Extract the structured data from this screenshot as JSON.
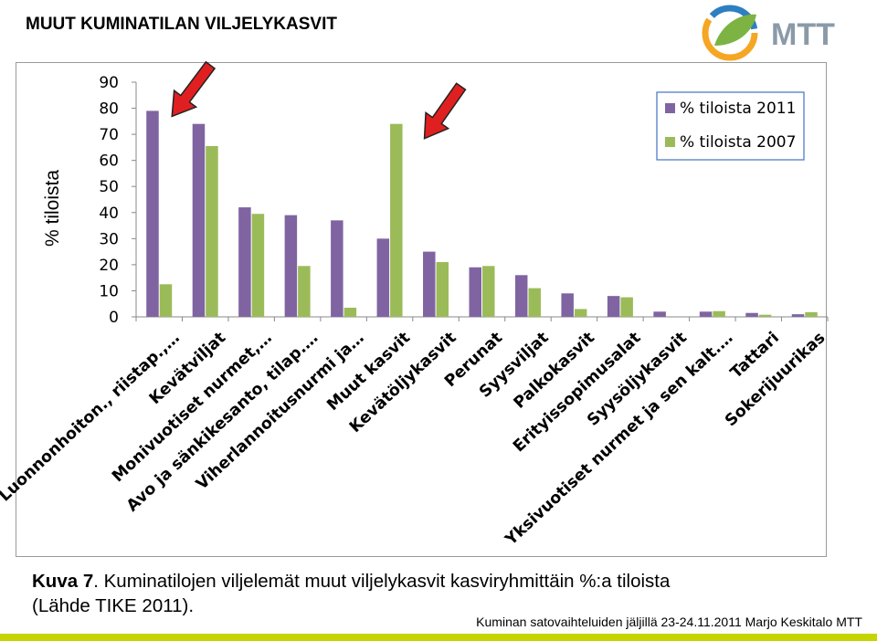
{
  "slide": {
    "title": "MUUT KUMINATILAN VILJELYKASVIT",
    "y_axis_title": "% tiloista",
    "caption_bold": "Kuva 7",
    "caption_rest": ". Kuminatilojen viljelemät muut viljelykasvit kasviryhmittäin %:a tiloista",
    "caption_line2": "(Lähde TIKE 2011).",
    "footer": "Kuminan satovaihteluiden jäljillä 23-24.11.2011 Marjo Keskitalo MTT",
    "logo_text": "MTT"
  },
  "colors": {
    "series_2011": "#8064a2",
    "series_2007": "#9bbb59",
    "arrow": "#e02020",
    "bottom_bar": "#c6d400",
    "logo_text": "#8a9aa8"
  },
  "chart_data": {
    "type": "bar",
    "categories": [
      "Luonnonhoiton., riistap.,…",
      "Kevätviljat",
      "Monivuotiset nurmet,…",
      "Avo ja sänkikesanto, tilap.…",
      "Viherlannoitusnurmi ja…",
      "Muut kasvit",
      "Kevätöljykasvit",
      "Perunat",
      "Syysviljat",
      "Palkokasvit",
      "Erityissopimusalat",
      "Syysöljykasvit",
      "Yksivuotiset nurmet ja sen kalt.…",
      "Tattari",
      "Sokerijuurikas"
    ],
    "series": [
      {
        "name": "% tiloista 2011",
        "values": [
          79,
          74,
          42,
          39,
          37,
          30,
          25,
          19,
          16,
          9,
          8,
          2,
          2,
          1.5,
          1
        ]
      },
      {
        "name": "% tiloista 2007",
        "values": [
          12.5,
          65.5,
          39.5,
          19.5,
          3.5,
          74,
          21,
          19.5,
          11,
          3,
          7.5,
          0,
          2.2,
          0.8,
          1.8
        ]
      }
    ],
    "y_ticks": [
      0,
      10,
      20,
      30,
      40,
      50,
      60,
      70,
      80,
      90
    ],
    "ylim": [
      0,
      90
    ],
    "legend_position": "top-right",
    "grid": false,
    "arrow_annotations": [
      "Luonnonhoiton., riistap.,…",
      "Muut kasvit"
    ]
  }
}
